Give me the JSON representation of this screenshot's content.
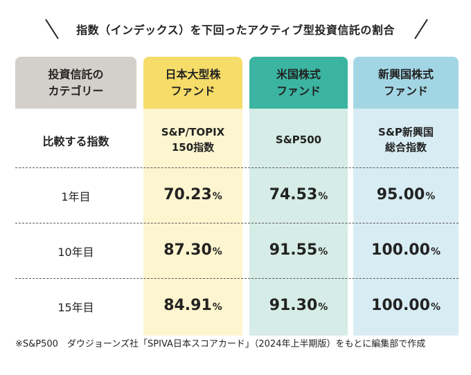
{
  "title": "指数（インデックス）を下回ったアクティブ型投資信託の割合",
  "table": {
    "header": [
      "投資信託の\nカテゴリー",
      "日本大型株\nファンド",
      "米国株式\nファンド",
      "新興国株式\nファンド"
    ],
    "index_row": {
      "label": "比較する指数",
      "values": [
        "S&P/TOPIX\n150指数",
        "S&P500",
        "S&P新興国\n総合指数"
      ]
    },
    "rows": [
      {
        "label": "1年目",
        "values": [
          {
            "number": "70.23",
            "unit": "%"
          },
          {
            "number": "74.53",
            "unit": "%"
          },
          {
            "number": "95.00",
            "unit": "%"
          }
        ]
      },
      {
        "label": "10年目",
        "values": [
          {
            "number": "87.30",
            "unit": "%"
          },
          {
            "number": "91.55",
            "unit": "%"
          },
          {
            "number": "100.00",
            "unit": "%"
          }
        ]
      },
      {
        "label": "15年目",
        "values": [
          {
            "number": "84.91",
            "unit": "%"
          },
          {
            "number": "91.30",
            "unit": "%"
          },
          {
            "number": "100.00",
            "unit": "%"
          }
        ]
      }
    ]
  },
  "footnote": "※S&P500　ダウジョーンズ社「SPIVA日本スコアカード」（2024年上半期版）をもとに編集部で作成"
}
